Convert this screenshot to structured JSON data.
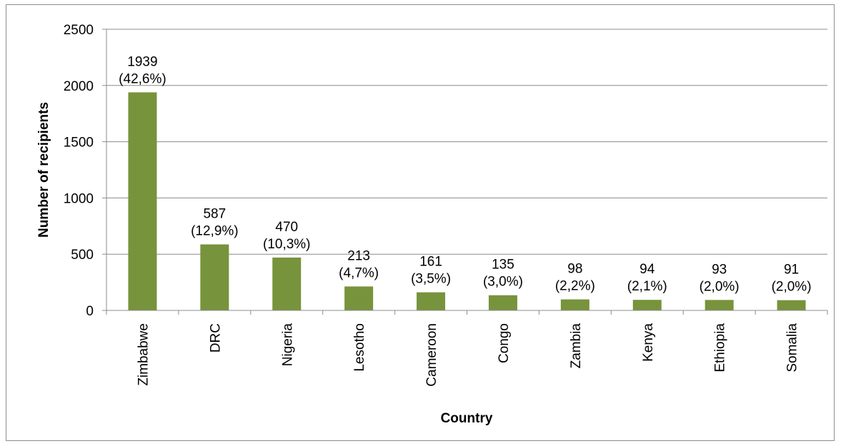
{
  "chart_data": {
    "type": "bar",
    "title": "",
    "xlabel": "Country",
    "ylabel": "Number of recipients",
    "ylim": [
      0,
      2500
    ],
    "yticks": [
      "0",
      "500",
      "1000",
      "1500",
      "2000",
      "2500"
    ],
    "grid": true,
    "legend": "none",
    "bar_color": "#77933C",
    "categories": [
      "Zimbabwe",
      "DRC",
      "Nigeria",
      "Lesotho",
      "Cameroon",
      "Congo",
      "Zambia",
      "Kenya",
      "Ethiopia",
      "Somalia"
    ],
    "values": [
      1939,
      587,
      470,
      213,
      161,
      135,
      98,
      94,
      93,
      91
    ],
    "labels": [
      [
        "1939",
        "(42,6%)"
      ],
      [
        "587",
        "(12,9%)"
      ],
      [
        "470",
        "(10,3%)"
      ],
      [
        "213",
        "(4,7%)"
      ],
      [
        "161",
        "(3,5%)"
      ],
      [
        "135",
        "(3,0%)"
      ],
      [
        "98",
        "(2,2%)"
      ],
      [
        "94",
        "(2,1%)"
      ],
      [
        "93",
        "(2,0%)"
      ],
      [
        "91",
        "(2,0%)"
      ]
    ]
  }
}
